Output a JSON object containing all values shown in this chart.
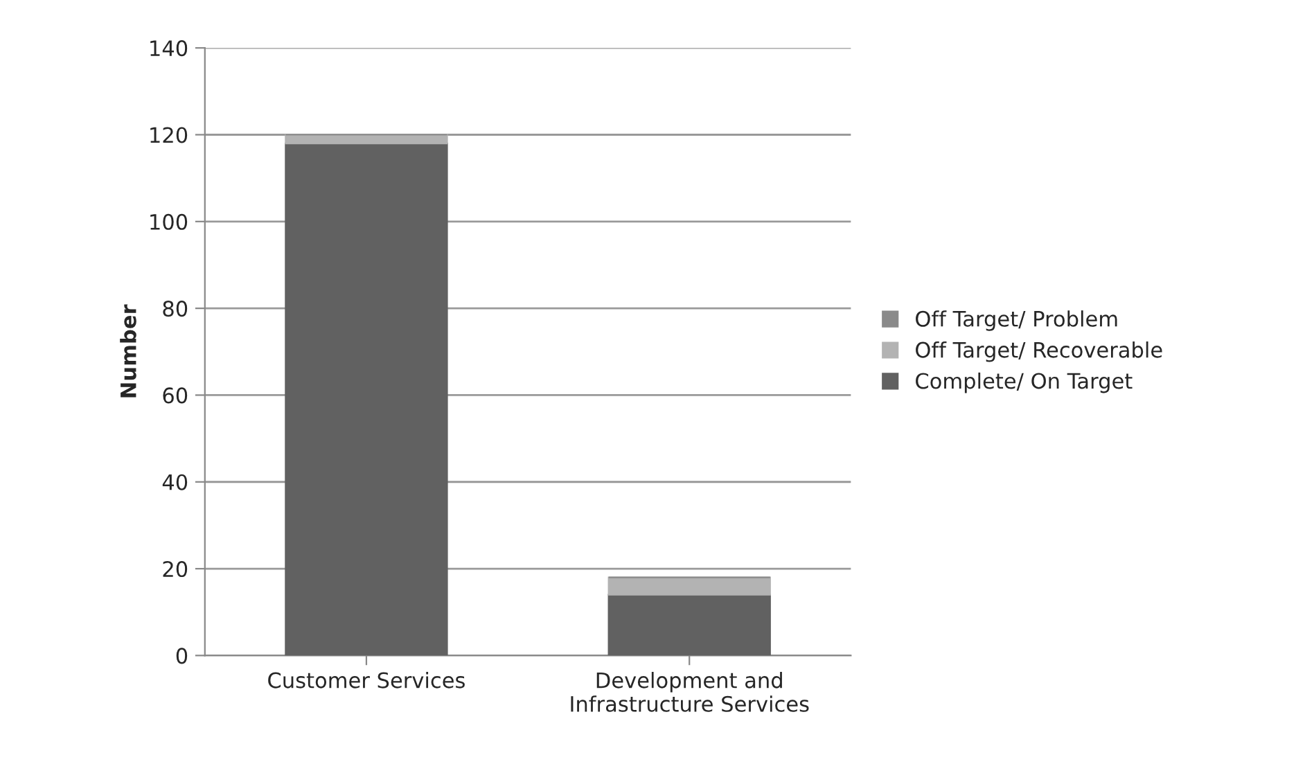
{
  "chart_data": {
    "type": "bar",
    "stacked": true,
    "ylabel": "Number",
    "categories": [
      "Customer Services",
      "Development and\nInfrastructure Services"
    ],
    "series": [
      {
        "name": "Complete/ On Target",
        "color": "#616161",
        "values": [
          118,
          14
        ]
      },
      {
        "name": "Off Target/ Recoverable",
        "color": "#b3b3b3",
        "values": [
          2,
          4
        ]
      },
      {
        "name": "Off Target/ Problem",
        "color": "#8a8a8a",
        "values": [
          0,
          0
        ]
      }
    ],
    "ylim": [
      0,
      140
    ],
    "yticks": [
      0,
      20,
      40,
      60,
      80,
      100,
      120,
      140
    ],
    "grid": "y",
    "legend": "right"
  }
}
